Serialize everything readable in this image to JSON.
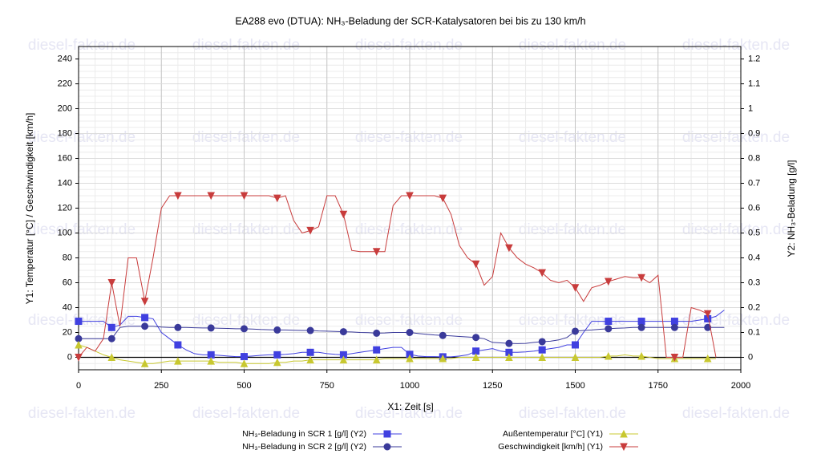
{
  "chart_data": {
    "type": "line",
    "title": "EA288 evo (DTUA): NH₃-Beladung der SCR-Katalysatoren bei bis zu 130 km/h",
    "watermark": "diesel-fakten.de",
    "xlabel": "X1: Zeit [s]",
    "ylabel": "Y1: Temperatur [°C] / Geschwindigkeit [km/h]",
    "y2label": "Y2: NH₃-Beladung [g/l]",
    "xlim": [
      0,
      2000
    ],
    "xticks": [
      0,
      250,
      500,
      750,
      1000,
      1250,
      1500,
      1750,
      2000
    ],
    "ylim": [
      -10,
      250
    ],
    "yticks": [
      0,
      20,
      40,
      60,
      80,
      100,
      120,
      140,
      160,
      180,
      200,
      220,
      240
    ],
    "y2lim": [
      -0.05,
      1.25
    ],
    "y2ticks": [
      0,
      0.1,
      0.2,
      0.3,
      0.4,
      0.5,
      0.6,
      0.7,
      0.8,
      0.9,
      1,
      1.1,
      1.2
    ],
    "grid": true,
    "x": [
      0,
      25,
      50,
      75,
      100,
      125,
      150,
      175,
      200,
      225,
      250,
      275,
      300,
      325,
      350,
      375,
      400,
      425,
      450,
      475,
      500,
      525,
      550,
      575,
      600,
      625,
      650,
      675,
      700,
      725,
      750,
      775,
      800,
      825,
      850,
      875,
      900,
      925,
      950,
      975,
      1000,
      1025,
      1050,
      1075,
      1100,
      1125,
      1150,
      1175,
      1200,
      1225,
      1250,
      1275,
      1300,
      1325,
      1350,
      1375,
      1400,
      1425,
      1450,
      1475,
      1500,
      1525,
      1550,
      1575,
      1600,
      1625,
      1650,
      1675,
      1700,
      1725,
      1750,
      1775,
      1800,
      1825,
      1850,
      1875,
      1900,
      1925,
      1950
    ],
    "series": [
      {
        "name": "NH₃-Beladung in SCR 1 [g/l] (Y2)",
        "color": "#4040e0",
        "marker": "square",
        "axis": "y2",
        "values": [
          0.145,
          0.145,
          0.145,
          0.145,
          0.12,
          0.13,
          0.165,
          0.165,
          0.16,
          0.155,
          0.1,
          0.075,
          0.05,
          0.03,
          0.015,
          0.01,
          0.01,
          0.008,
          0.005,
          0.003,
          0.003,
          0.005,
          0.008,
          0.01,
          0.01,
          0.012,
          0.015,
          0.02,
          0.02,
          0.02,
          0.015,
          0.012,
          0.01,
          0.015,
          0.02,
          0.025,
          0.03,
          0.035,
          0.04,
          0.04,
          0.012,
          0.005,
          0.003,
          0.003,
          0.002,
          0.002,
          0.005,
          0.01,
          0.025,
          0.03,
          0.035,
          0.025,
          0.02,
          0.02,
          0.022,
          0.025,
          0.03,
          0.035,
          0.04,
          0.05,
          0.05,
          0.1,
          0.145,
          0.145,
          0.145,
          0.145,
          0.145,
          0.145,
          0.145,
          0.145,
          0.145,
          0.145,
          0.145,
          0.145,
          0.145,
          0.15,
          0.155,
          0.165,
          0.19
        ]
      },
      {
        "name": "NH₃-Beladung in SCR 2 [g/l] (Y2)",
        "color": "#3a3a9a",
        "marker": "circle",
        "axis": "y2",
        "values": [
          0.075,
          0.075,
          0.075,
          0.075,
          0.075,
          0.12,
          0.125,
          0.125,
          0.125,
          0.125,
          0.122,
          0.12,
          0.12,
          0.12,
          0.119,
          0.118,
          0.118,
          0.117,
          0.116,
          0.115,
          0.115,
          0.114,
          0.112,
          0.111,
          0.11,
          0.11,
          0.109,
          0.108,
          0.108,
          0.106,
          0.105,
          0.104,
          0.103,
          0.102,
          0.1,
          0.099,
          0.097,
          0.098,
          0.1,
          0.1,
          0.1,
          0.096,
          0.093,
          0.09,
          0.088,
          0.086,
          0.084,
          0.082,
          0.08,
          0.075,
          0.06,
          0.058,
          0.056,
          0.055,
          0.056,
          0.06,
          0.063,
          0.065,
          0.07,
          0.08,
          0.105,
          0.108,
          0.11,
          0.113,
          0.115,
          0.117,
          0.118,
          0.12,
          0.12,
          0.12,
          0.12,
          0.12,
          0.12,
          0.12,
          0.12,
          0.12,
          0.12,
          0.12,
          0.12
        ]
      },
      {
        "name": "Außentemperatur [°C] (Y1)",
        "color": "#c8c830",
        "marker": "triangle-up",
        "axis": "y",
        "values": [
          10,
          8,
          5,
          2,
          0,
          -2,
          -3,
          -4,
          -5,
          -5,
          -4,
          -3,
          -3,
          -3,
          -3,
          -3,
          -3,
          -4,
          -4,
          -4,
          -5,
          -5,
          -5,
          -5,
          -4,
          -4,
          -3,
          -3,
          -2,
          -2,
          -2,
          -2,
          -2,
          -2,
          -2,
          -2,
          -2,
          -1,
          -1,
          -1,
          -1,
          -1,
          -1,
          -1,
          -1,
          -1,
          0,
          0,
          0,
          0,
          0,
          0,
          0,
          0,
          0,
          0,
          0,
          0,
          0,
          0,
          0,
          0,
          0,
          0,
          1,
          1,
          2,
          1,
          1,
          0,
          -1,
          -1,
          -1,
          -1,
          -1,
          -1,
          -1,
          -1,
          null
        ]
      },
      {
        "name": "Geschwindigkeit [km/h] (Y1)",
        "color": "#c83c3c",
        "marker": "triangle-down",
        "axis": "y",
        "values": [
          0,
          8,
          5,
          15,
          60,
          25,
          80,
          80,
          45,
          80,
          120,
          130,
          130,
          130,
          130,
          130,
          130,
          130,
          130,
          130,
          130,
          130,
          130,
          130,
          128,
          130,
          110,
          100,
          102,
          105,
          130,
          130,
          115,
          86,
          85,
          85,
          85,
          85,
          122,
          130,
          130,
          130,
          130,
          130,
          128,
          115,
          90,
          80,
          75,
          58,
          65,
          100,
          88,
          80,
          75,
          72,
          68,
          62,
          60,
          62,
          56,
          45,
          56,
          58,
          61,
          63,
          65,
          64,
          64,
          60,
          66,
          0,
          0,
          0,
          40,
          38,
          35,
          0,
          null
        ]
      }
    ]
  }
}
